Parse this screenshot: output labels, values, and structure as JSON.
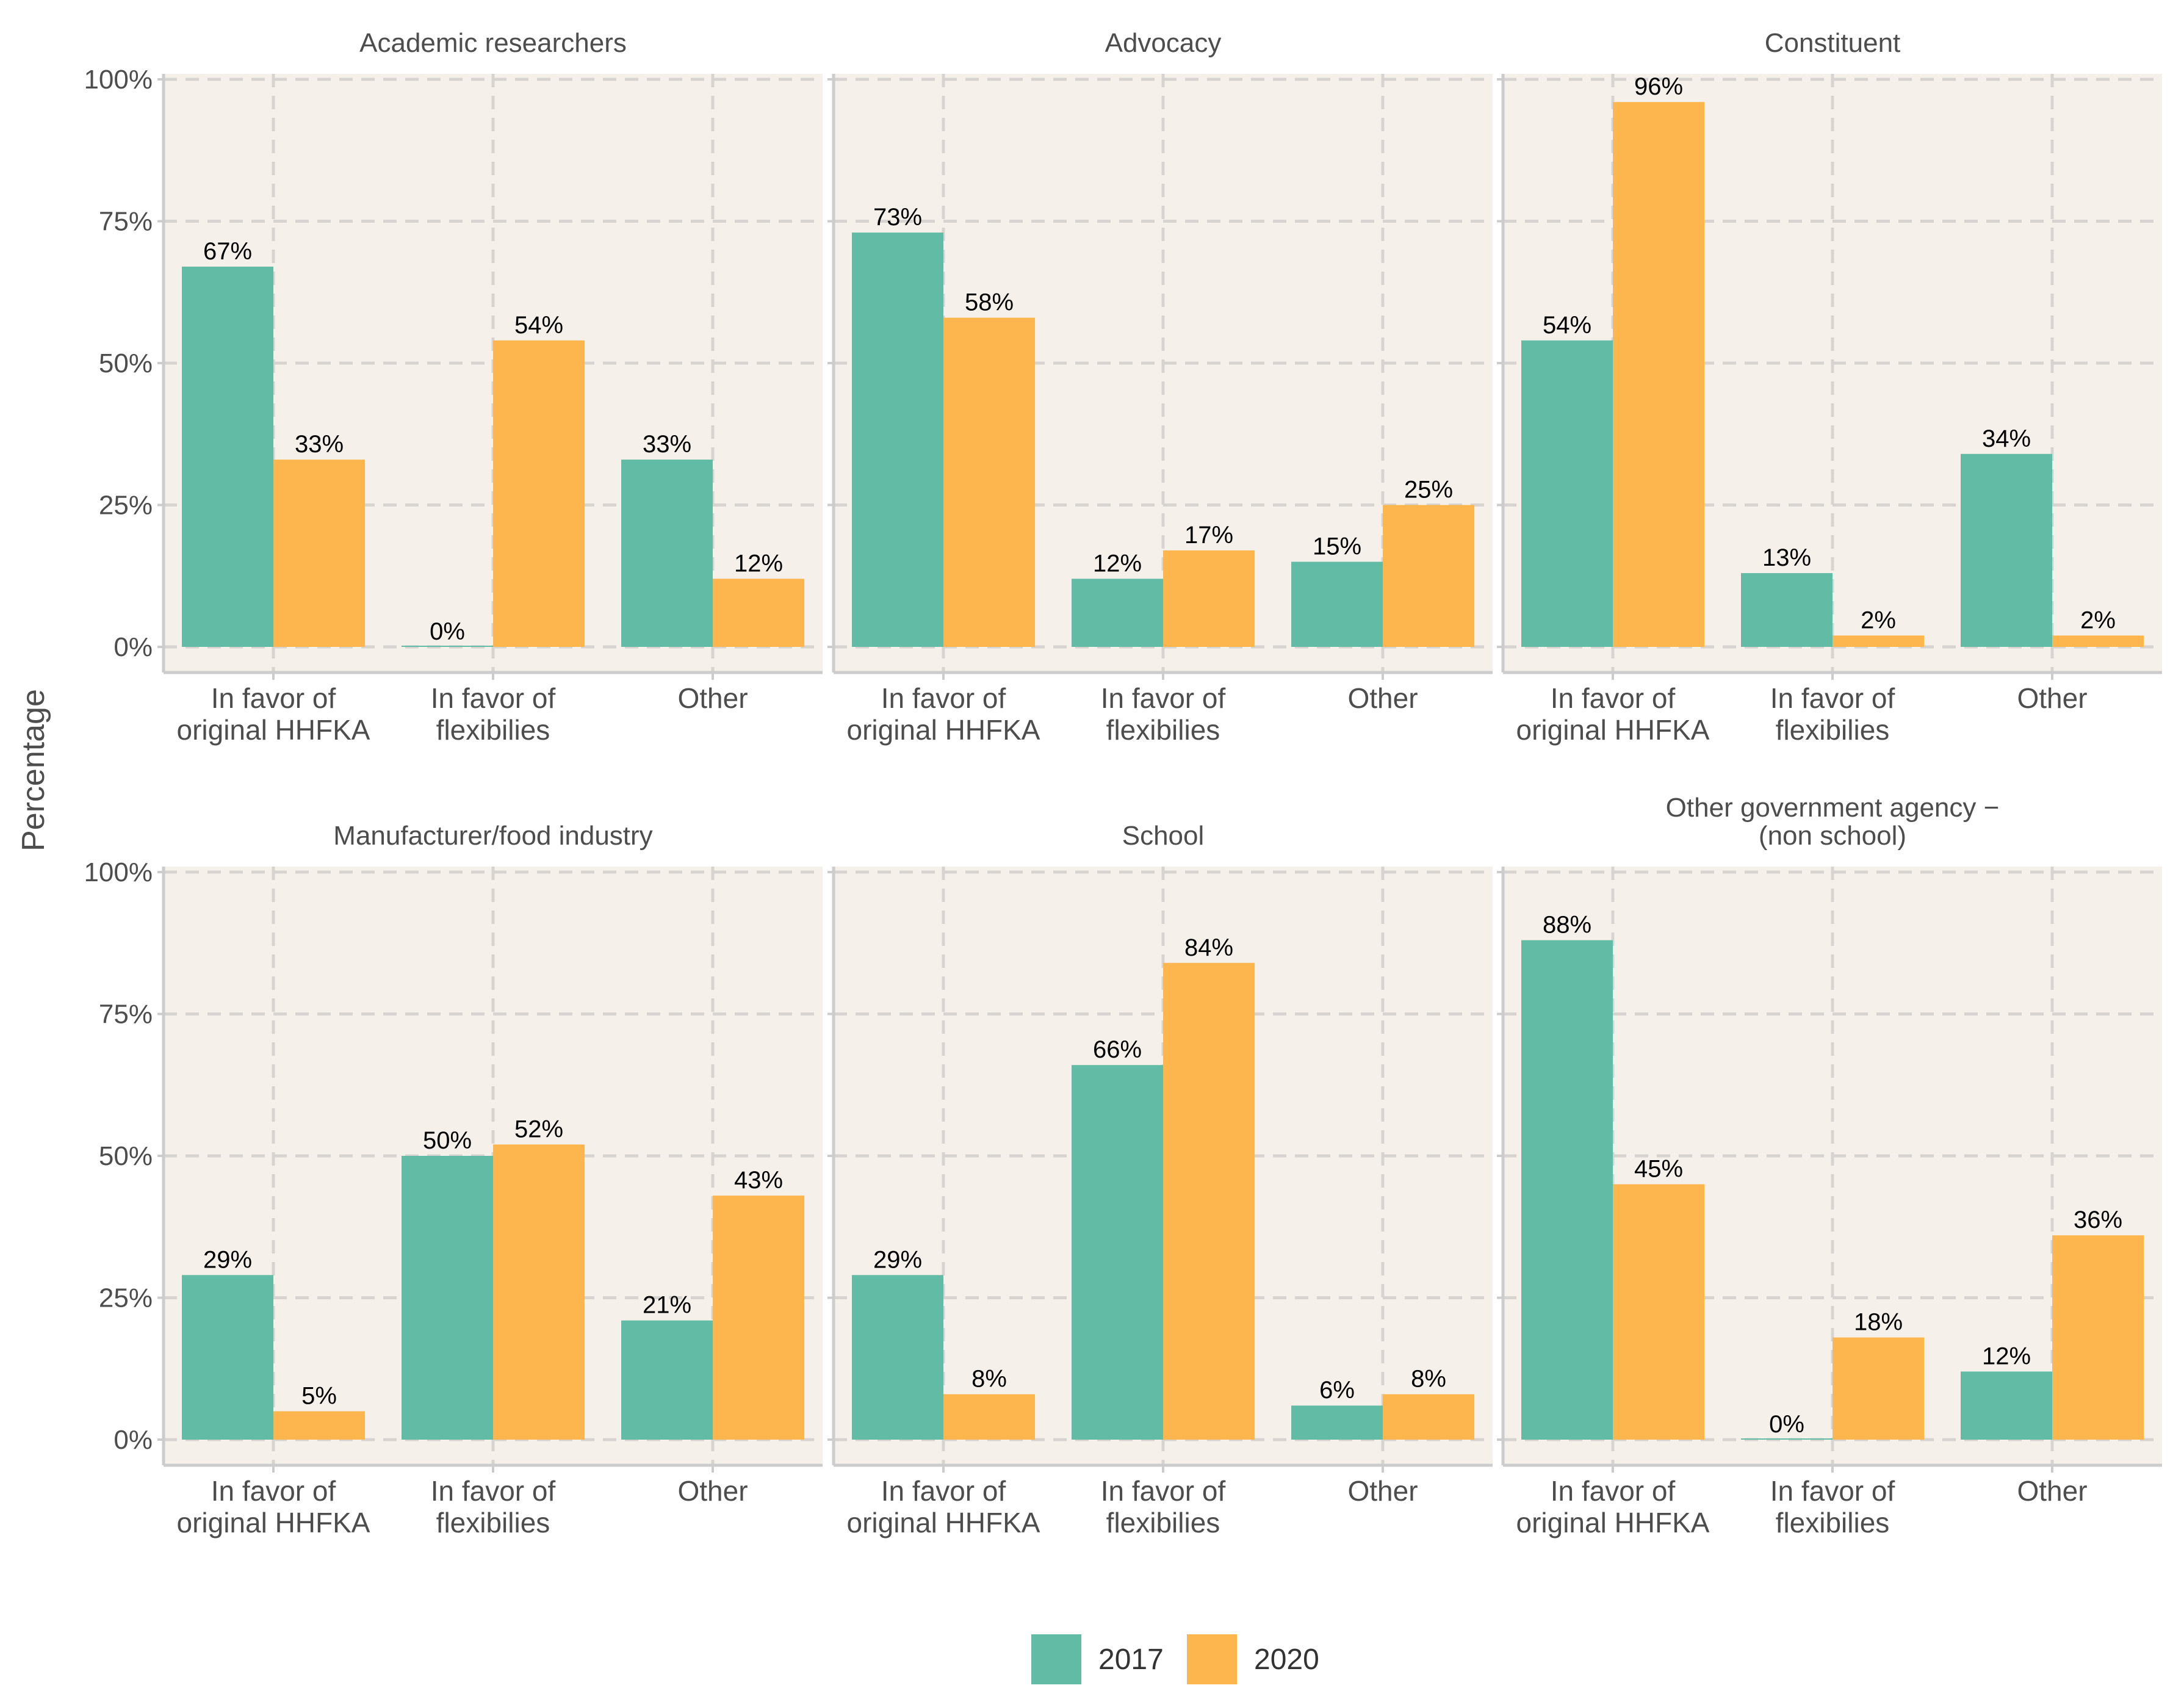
{
  "chart_data": {
    "type": "bar",
    "ylabel": "Percentage",
    "ylim": [
      0,
      100
    ],
    "yticks": [
      "0%",
      "25%",
      "50%",
      "75%",
      "100%"
    ],
    "categories": [
      [
        "In favor of",
        "original HHFKA"
      ],
      [
        "In favor of",
        "flexibilies"
      ],
      [
        "Other"
      ]
    ],
    "legend": {
      "position": "bottom",
      "entries": [
        {
          "name": "2017",
          "color": "#62bba5"
        },
        {
          "name": "2020",
          "color": "#fdb64e"
        }
      ]
    },
    "panels": [
      {
        "title": [
          "Academic researchers"
        ],
        "series": [
          {
            "name": "2017",
            "values": [
              67,
              0,
              33
            ],
            "labels": [
              "67%",
              "0%",
              "33%"
            ]
          },
          {
            "name": "2020",
            "values": [
              33,
              54,
              12
            ],
            "labels": [
              "33%",
              "54%",
              "12%"
            ]
          }
        ]
      },
      {
        "title": [
          "Advocacy"
        ],
        "series": [
          {
            "name": "2017",
            "values": [
              73,
              12,
              15
            ],
            "labels": [
              "73%",
              "12%",
              "15%"
            ]
          },
          {
            "name": "2020",
            "values": [
              58,
              17,
              25
            ],
            "labels": [
              "58%",
              "17%",
              "25%"
            ]
          }
        ]
      },
      {
        "title": [
          "Constituent"
        ],
        "series": [
          {
            "name": "2017",
            "values": [
              54,
              13,
              34
            ],
            "labels": [
              "54%",
              "13%",
              "34%"
            ]
          },
          {
            "name": "2020",
            "values": [
              96,
              2,
              2
            ],
            "labels": [
              "96%",
              "2%",
              "2%"
            ]
          }
        ]
      },
      {
        "title": [
          "Manufacturer/food industry"
        ],
        "series": [
          {
            "name": "2017",
            "values": [
              29,
              50,
              21
            ],
            "labels": [
              "29%",
              "50%",
              "21%"
            ]
          },
          {
            "name": "2020",
            "values": [
              5,
              52,
              43
            ],
            "labels": [
              "5%",
              "52%",
              "43%"
            ]
          }
        ]
      },
      {
        "title": [
          "School"
        ],
        "series": [
          {
            "name": "2017",
            "values": [
              29,
              66,
              6
            ],
            "labels": [
              "29%",
              "66%",
              "6%"
            ]
          },
          {
            "name": "2020",
            "values": [
              8,
              84,
              8
            ],
            "labels": [
              "8%",
              "84%",
              "8%"
            ]
          }
        ]
      },
      {
        "title": [
          "Other government agency −",
          "(non school)"
        ],
        "series": [
          {
            "name": "2017",
            "values": [
              88,
              0,
              12
            ],
            "labels": [
              "88%",
              "0%",
              "12%"
            ]
          },
          {
            "name": "2020",
            "values": [
              45,
              18,
              36
            ],
            "labels": [
              "45%",
              "18%",
              "36%"
            ]
          }
        ]
      }
    ]
  }
}
